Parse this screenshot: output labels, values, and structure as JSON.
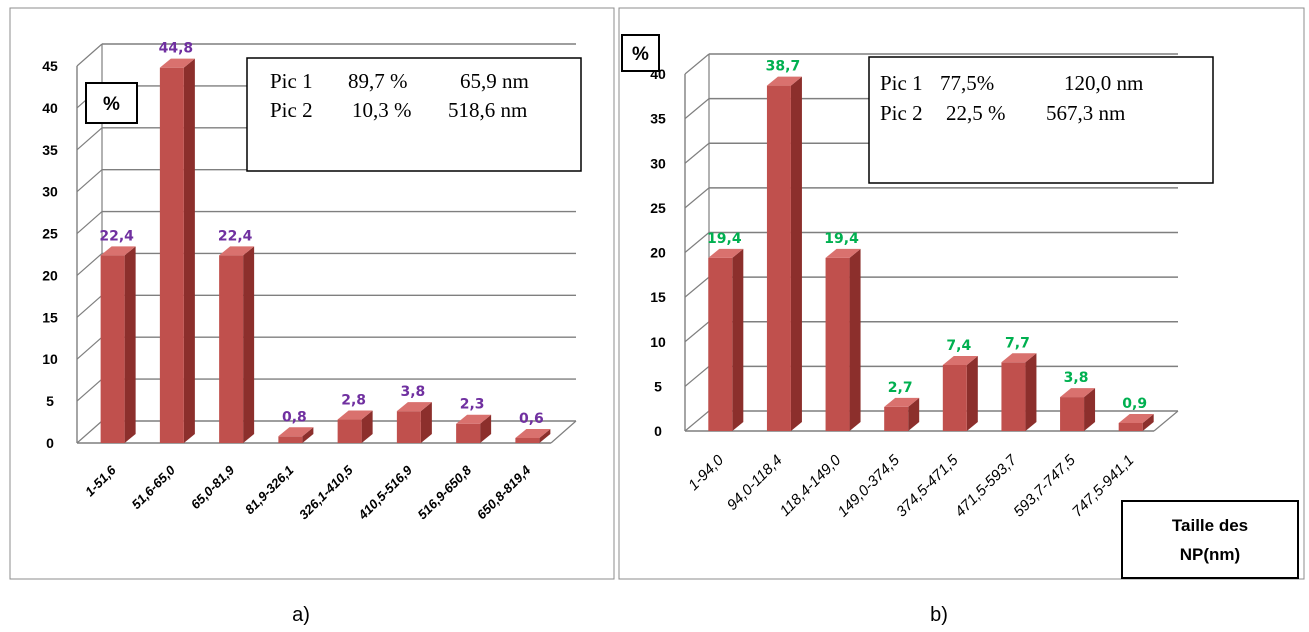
{
  "charts": [
    {
      "caption": "a)",
      "ylabel": "%",
      "colors": {
        "bar_front": "#c0504d",
        "bar_side": "#8c2f2c",
        "bar_top": "#d9716e",
        "data_label": "#7030a0"
      },
      "annotation": [
        {
          "name": "Pic 1",
          "pct": "89,7 %",
          "size": "65,9 nm"
        },
        {
          "name": "Pic 2",
          "pct": "10,3 %",
          "size": "518,6 nm"
        }
      ]
    },
    {
      "caption": "b)",
      "ylabel": "%",
      "xlabel_line1": "Taille des",
      "xlabel_line2": "NP(nm)",
      "colors": {
        "bar_front": "#c0504d",
        "bar_side": "#8c2f2c",
        "bar_top": "#d9716e",
        "data_label": "#00b050"
      },
      "annotation": [
        {
          "name": "Pic 1",
          "pct": "77,5%",
          "size": "120,0 nm"
        },
        {
          "name": "Pic 2",
          "pct": "22,5 %",
          "size": "567,3 nm"
        }
      ]
    }
  ],
  "chart_data": [
    {
      "type": "bar",
      "style": "3d-column",
      "categories": [
        "1-51,6",
        "51,6-65,0",
        "65,0-81,9",
        "81,9-326,1",
        "326,1-410,5",
        "410,5-516,9",
        "516,9-650,8",
        "650,8-819,4"
      ],
      "values": [
        22.4,
        44.8,
        22.4,
        0.8,
        2.8,
        3.8,
        2.3,
        0.6
      ],
      "data_labels": [
        "22,4",
        "44,8",
        "22,4",
        "0,8",
        "2,8",
        "3,8",
        "2,3",
        "0,6"
      ],
      "ylabel": "%",
      "ylim": [
        0,
        45
      ],
      "yticks": [
        "0",
        "5",
        "10",
        "15",
        "20",
        "25",
        "30",
        "35",
        "40",
        "45"
      ],
      "grid": true
    },
    {
      "type": "bar",
      "style": "3d-column",
      "categories": [
        "1-94,0",
        "94,0-118,4",
        "118,4-149,0",
        "149,0-374,5",
        "374,5-471,5",
        "471,5-593,7",
        "593,7-747,5",
        "747,5-941,1"
      ],
      "values": [
        19.4,
        38.7,
        19.4,
        2.7,
        7.4,
        7.7,
        3.8,
        0.9
      ],
      "data_labels": [
        "19,4",
        "38,7",
        "19,4",
        "2,7",
        "7,4",
        "7,7",
        "3,8",
        "0,9"
      ],
      "ylabel": "%",
      "xlabel": "Taille des NP(nm)",
      "ylim": [
        0,
        40
      ],
      "yticks": [
        "0",
        "5",
        "10",
        "15",
        "20",
        "25",
        "30",
        "35",
        "40"
      ],
      "grid": true
    }
  ]
}
